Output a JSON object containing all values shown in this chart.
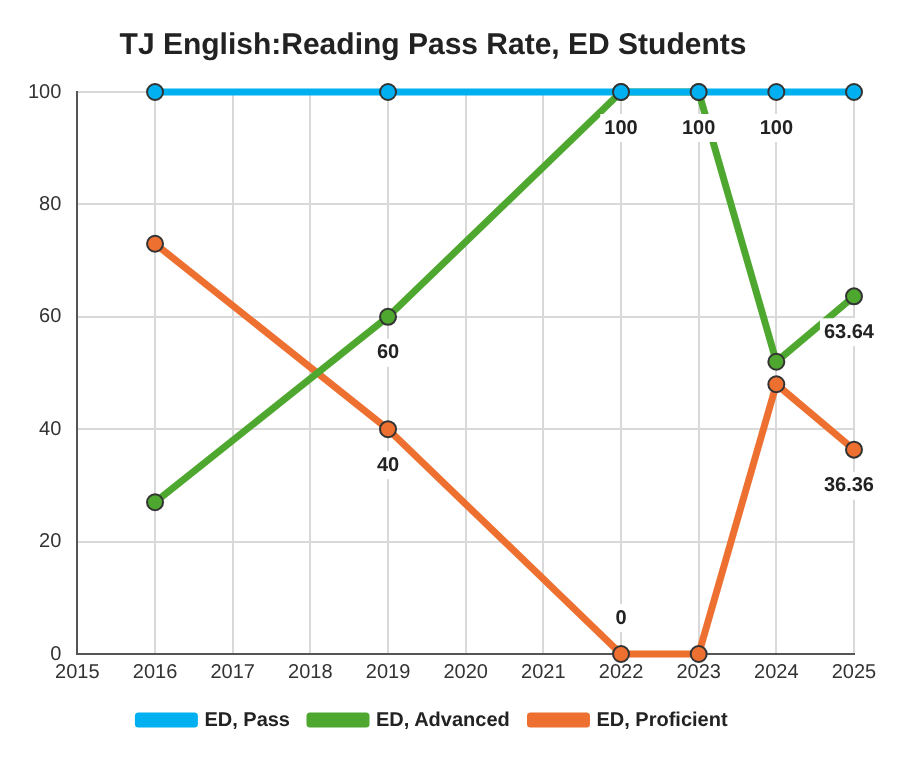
{
  "chart_data": {
    "type": "line",
    "title": "TJ English:Reading Pass Rate, ED Students",
    "x": [
      2016,
      2019,
      2022,
      2023,
      2024,
      2025
    ],
    "xlim": [
      2015,
      2025
    ],
    "xticks": [
      2015,
      2016,
      2017,
      2018,
      2019,
      2020,
      2021,
      2022,
      2023,
      2024,
      2025
    ],
    "ylim": [
      0,
      100
    ],
    "yticks": [
      0,
      20,
      40,
      60,
      80,
      100
    ],
    "grid": true,
    "legend": "bottom",
    "marker": "circle",
    "line_style": "solid",
    "series": [
      {
        "name": "ED, Pass",
        "color": "#00b0f0",
        "values": [
          100,
          100,
          100,
          100,
          100,
          100
        ],
        "value_labels": [
          null,
          null,
          null,
          null,
          "100",
          null
        ]
      },
      {
        "name": "ED, Advanced",
        "color": "#4ea72e",
        "values": [
          27,
          60,
          100,
          100,
          52,
          63.64
        ],
        "value_labels": [
          null,
          "60",
          "100",
          "100",
          null,
          "63.64"
        ]
      },
      {
        "name": "ED, Proficient",
        "color": "#ed7031",
        "values": [
          73,
          40,
          0,
          0,
          48,
          36.36
        ],
        "value_labels": [
          null,
          "40",
          "0",
          null,
          null,
          "36.36"
        ]
      }
    ]
  }
}
